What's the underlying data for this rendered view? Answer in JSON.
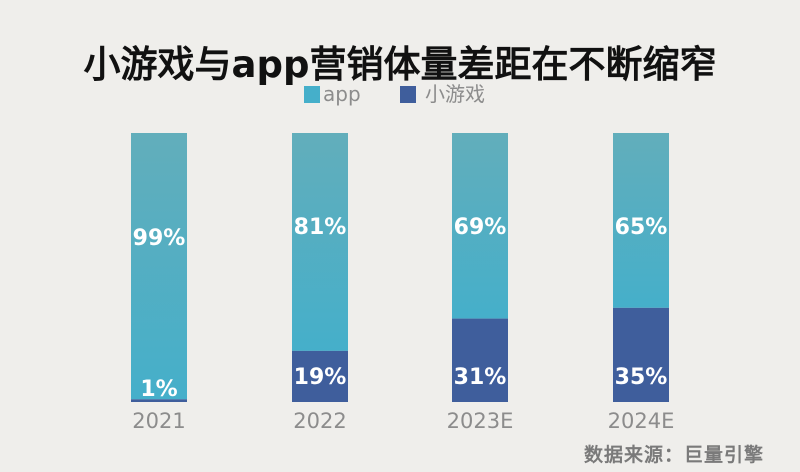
{
  "chart_data": {
    "type": "bar",
    "stacked": true,
    "percent": true,
    "title": "小游戏与app营销体量差距在不断缩窄",
    "categories": [
      "2021",
      "2022",
      "2023E",
      "2024E"
    ],
    "series": [
      {
        "name": "app",
        "values": [
          99,
          81,
          69,
          65
        ],
        "labels": [
          "99%",
          "81%",
          "69%",
          "65%"
        ],
        "color": "#45afca",
        "color_top": "#62aebb"
      },
      {
        "name": "小游戏",
        "values": [
          1,
          19,
          31,
          35
        ],
        "labels": [
          "1%",
          "19%",
          "31%",
          "35%"
        ],
        "color": "#3f5e9c"
      }
    ],
    "ylim": [
      0,
      100
    ],
    "xlabel": "",
    "ylabel": "",
    "grid": false,
    "legend": "top-center"
  },
  "source": "数据来源：巨量引擎",
  "colors": {
    "background": "#efeeeb",
    "label_gray": "#8c8c8c"
  }
}
